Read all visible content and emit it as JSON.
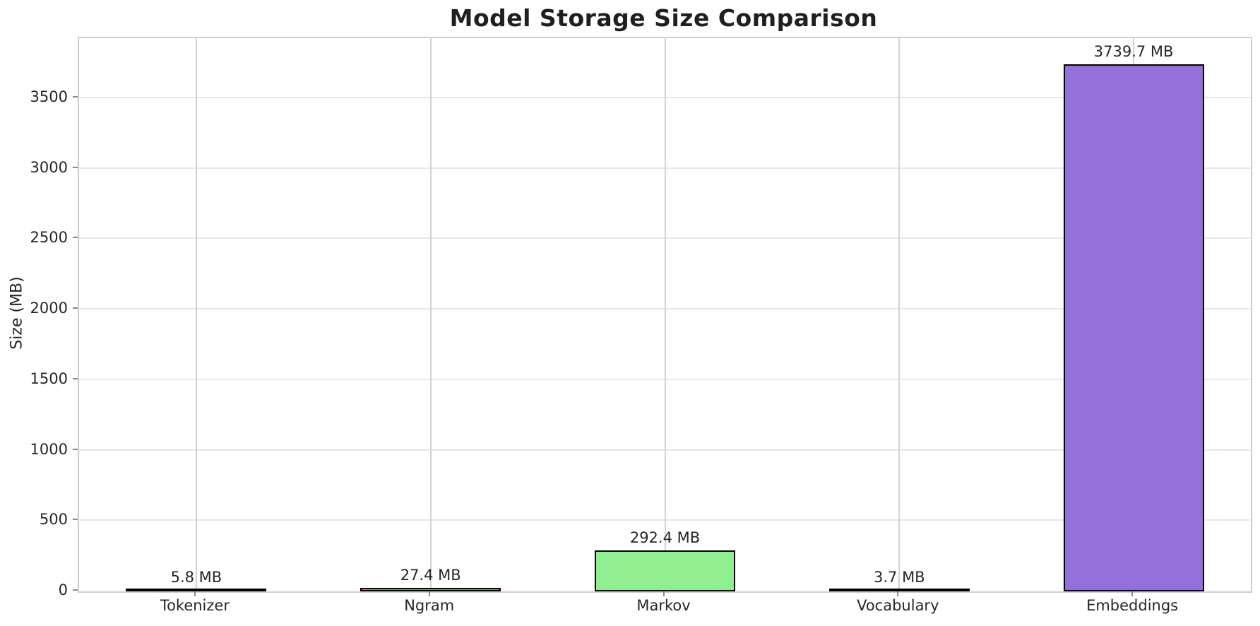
{
  "chart_data": {
    "type": "bar",
    "title": "Model Storage Size Comparison",
    "xlabel": "",
    "ylabel": "Size (MB)",
    "categories": [
      "Tokenizer",
      "Ngram",
      "Markov",
      "Vocabulary",
      "Embeddings"
    ],
    "values": [
      5.8,
      27.4,
      292.4,
      3.7,
      3739.7
    ],
    "value_labels": [
      "5.8 MB",
      "27.4 MB",
      "292.4 MB",
      "3.7 MB",
      "3739.7 MB"
    ],
    "bar_colors": [
      "#87ceeb",
      "#f08080",
      "#90ee90",
      "#ffd700",
      "#9370db"
    ],
    "bar_edge_color": "#000000",
    "yticks": [
      0,
      500,
      1000,
      1500,
      2000,
      2500,
      3000,
      3500
    ],
    "ylim": [
      0,
      3926
    ],
    "bar_width_fraction": 0.6,
    "grid": true,
    "legend_position": "none",
    "background_color": "#ffffff"
  }
}
